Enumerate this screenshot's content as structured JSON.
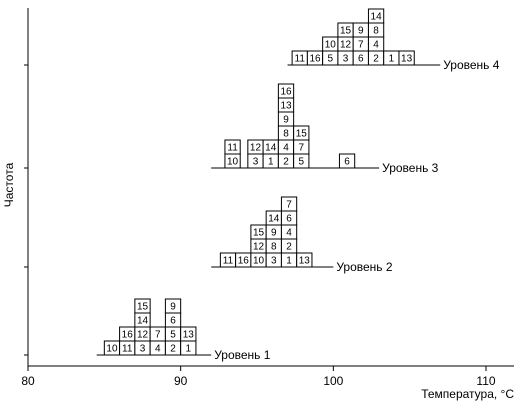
{
  "chart_data": {
    "type": "histogram-dot",
    "ylabel": "Частота",
    "xlabel": "Температура, °С",
    "xlim": [
      80,
      110
    ],
    "xticks": [
      80,
      90,
      100,
      110
    ],
    "bin_width": 1,
    "levels": [
      {
        "name": "Уровень 1",
        "line_from": 84.5,
        "line_to": 92,
        "columns": [
          {
            "x": 85,
            "cells": [
              "10"
            ]
          },
          {
            "x": 86,
            "cells": [
              "11",
              "16"
            ]
          },
          {
            "x": 87,
            "cells": [
              "3",
              "12",
              "14",
              "15"
            ]
          },
          {
            "x": 88,
            "cells": [
              "4",
              "7"
            ]
          },
          {
            "x": 89,
            "cells": [
              "2",
              "5",
              "6",
              "9"
            ]
          },
          {
            "x": 90,
            "cells": [
              "1",
              "13"
            ]
          }
        ]
      },
      {
        "name": "Уровень 2",
        "line_from": 92,
        "line_to": 100,
        "columns": [
          {
            "x": 92.6,
            "cells": [
              "11"
            ]
          },
          {
            "x": 93.6,
            "cells": [
              "16"
            ]
          },
          {
            "x": 94.6,
            "cells": [
              "10",
              "12",
              "15"
            ]
          },
          {
            "x": 95.6,
            "cells": [
              "3",
              "8",
              "9",
              "14"
            ]
          },
          {
            "x": 96.6,
            "cells": [
              "1",
              "2",
              "4",
              "6",
              "7"
            ]
          },
          {
            "x": 97.6,
            "cells": [
              "13"
            ]
          }
        ]
      },
      {
        "name": "Уровень 3",
        "line_from": 92,
        "line_to": 103,
        "columns": [
          {
            "x": 92.9,
            "cells": [
              "10",
              "11"
            ]
          },
          {
            "x": 94.4,
            "cells": [
              "3",
              "12"
            ]
          },
          {
            "x": 95.4,
            "cells": [
              "1",
              "14"
            ]
          },
          {
            "x": 96.4,
            "cells": [
              "2",
              "4",
              "8",
              "9",
              "13",
              "16"
            ]
          },
          {
            "x": 97.4,
            "cells": [
              "5",
              "7",
              "15"
            ]
          },
          {
            "x": 100.4,
            "cells": [
              "6"
            ]
          }
        ]
      },
      {
        "name": "Уровень 4",
        "line_from": 97,
        "line_to": 107,
        "columns": [
          {
            "x": 97.3,
            "cells": [
              "11"
            ]
          },
          {
            "x": 98.3,
            "cells": [
              "16"
            ]
          },
          {
            "x": 99.3,
            "cells": [
              "5",
              "10"
            ]
          },
          {
            "x": 100.3,
            "cells": [
              "3",
              "12",
              "15"
            ]
          },
          {
            "x": 101.3,
            "cells": [
              "6",
              "7",
              "9"
            ]
          },
          {
            "x": 102.3,
            "cells": [
              "2",
              "4",
              "8",
              "14"
            ]
          },
          {
            "x": 103.3,
            "cells": [
              "1"
            ]
          },
          {
            "x": 104.3,
            "cells": [
              "13"
            ]
          }
        ]
      }
    ]
  }
}
